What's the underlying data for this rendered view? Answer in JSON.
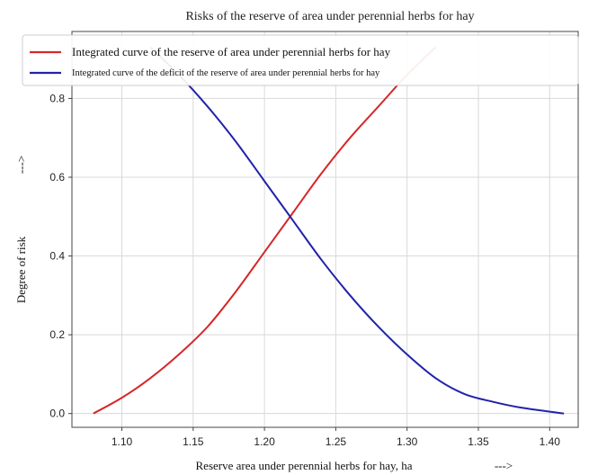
{
  "chart_data": {
    "type": "line",
    "title": "Risks of the reserve of area under perennial herbs for hay",
    "xlabel": "Reserve area under perennial herbs for hay, ha",
    "xlabel_arrow": "--->",
    "ylabel": "Degree of risk",
    "ylabel_arrow": "--->",
    "xlim": [
      1.065,
      1.42
    ],
    "ylim": [
      -0.035,
      0.97
    ],
    "xticks": [
      "1.10",
      "1.15",
      "1.20",
      "1.25",
      "1.30",
      "1.35",
      "1.40"
    ],
    "yticks": [
      "0.0",
      "0.2",
      "0.4",
      "0.6",
      "0.8"
    ],
    "grid": true,
    "legend_position": "top",
    "series": [
      {
        "name": "Integrated curve of the reserve of area under perennial herbs for hay",
        "color": "#d62728",
        "x": [
          1.08,
          1.1,
          1.12,
          1.14,
          1.16,
          1.18,
          1.2,
          1.22,
          1.24,
          1.26,
          1.28,
          1.3,
          1.32
        ],
        "y": [
          0.0,
          0.04,
          0.09,
          0.15,
          0.22,
          0.31,
          0.41,
          0.51,
          0.61,
          0.7,
          0.78,
          0.86,
          0.93
        ]
      },
      {
        "name": "Integrated curve of the deficit of the reserve of area under perennial herbs for hay",
        "color": "#2222aa",
        "x": [
          1.12,
          1.14,
          1.16,
          1.18,
          1.2,
          1.22,
          1.24,
          1.26,
          1.28,
          1.3,
          1.32,
          1.34,
          1.36,
          1.38,
          1.41
        ],
        "y": [
          0.93,
          0.86,
          0.78,
          0.69,
          0.59,
          0.49,
          0.39,
          0.3,
          0.22,
          0.15,
          0.09,
          0.05,
          0.03,
          0.015,
          0.0
        ]
      }
    ]
  }
}
